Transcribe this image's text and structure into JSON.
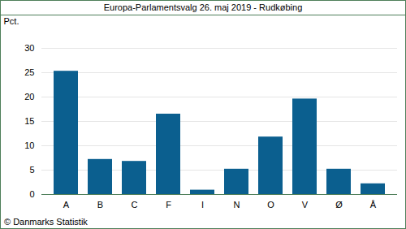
{
  "chart_data": {
    "type": "bar",
    "title": "Europa-Parlamentsvalg 26. maj 2019 - Rudkøbing",
    "y_label": "Pct.",
    "caption": "© Danmarks Statistik",
    "categories": [
      "A",
      "B",
      "C",
      "F",
      "I",
      "N",
      "O",
      "V",
      "Ø",
      "Å"
    ],
    "values": [
      25.3,
      7.2,
      6.8,
      16.5,
      0.9,
      5.2,
      11.8,
      19.6,
      5.2,
      2.2
    ],
    "color": "#0b5f8f",
    "ylim": [
      0,
      30
    ],
    "yticks": [
      0,
      5,
      10,
      15,
      20,
      25,
      30
    ],
    "grid": true
  }
}
